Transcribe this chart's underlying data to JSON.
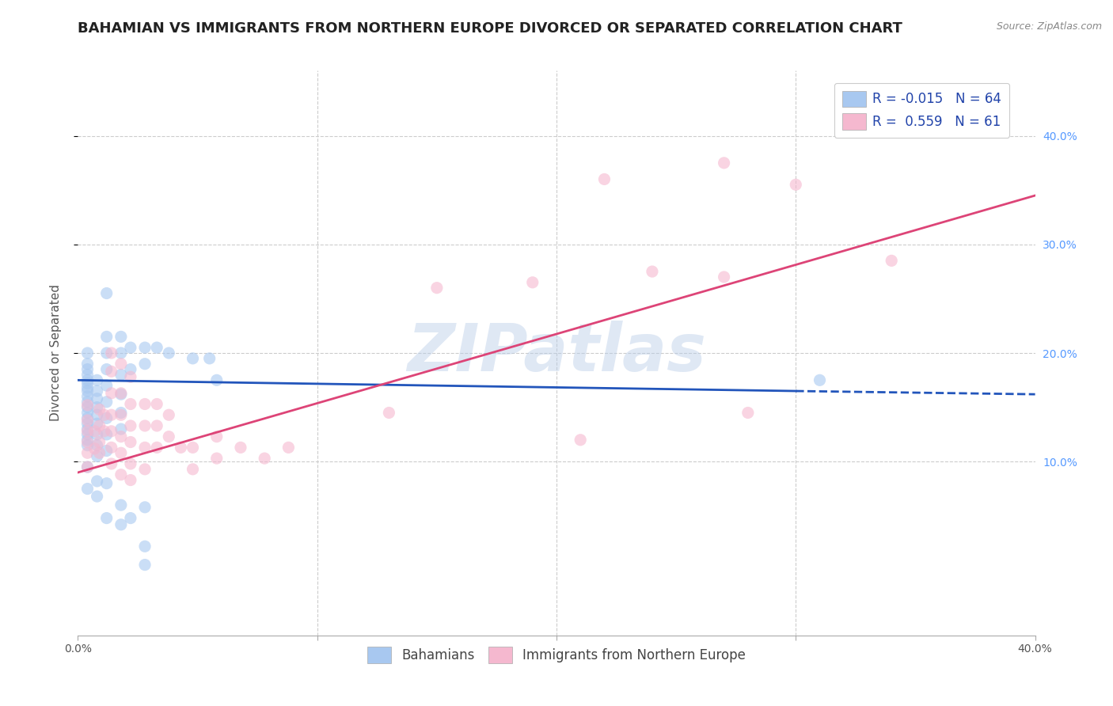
{
  "title": "BAHAMIAN VS IMMIGRANTS FROM NORTHERN EUROPE DIVORCED OR SEPARATED CORRELATION CHART",
  "source": "Source: ZipAtlas.com",
  "ylabel": "Divorced or Separated",
  "xlim": [
    0.0,
    0.4
  ],
  "ylim": [
    -0.06,
    0.46
  ],
  "yticks_right": [
    0.1,
    0.2,
    0.3,
    0.4
  ],
  "ytick_labels_right": [
    "10.0%",
    "20.0%",
    "30.0%",
    "40.0%"
  ],
  "legend_r_blue": "R = -0.015",
  "legend_n_blue": "N = 64",
  "legend_r_pink": "R =  0.559",
  "legend_n_pink": "N = 61",
  "color_blue": "#a8c8f0",
  "color_pink": "#f5b8cf",
  "line_blue": "#2255bb",
  "line_pink": "#dd4477",
  "watermark": "ZIPatlas",
  "blue_scatter": [
    [
      0.004,
      0.2
    ],
    [
      0.004,
      0.19
    ],
    [
      0.004,
      0.185
    ],
    [
      0.004,
      0.18
    ],
    [
      0.004,
      0.175
    ],
    [
      0.004,
      0.172
    ],
    [
      0.004,
      0.168
    ],
    [
      0.004,
      0.165
    ],
    [
      0.004,
      0.16
    ],
    [
      0.004,
      0.155
    ],
    [
      0.004,
      0.15
    ],
    [
      0.004,
      0.145
    ],
    [
      0.004,
      0.14
    ],
    [
      0.004,
      0.135
    ],
    [
      0.004,
      0.13
    ],
    [
      0.004,
      0.125
    ],
    [
      0.004,
      0.12
    ],
    [
      0.004,
      0.115
    ],
    [
      0.004,
      0.095
    ],
    [
      0.008,
      0.175
    ],
    [
      0.008,
      0.165
    ],
    [
      0.008,
      0.158
    ],
    [
      0.008,
      0.15
    ],
    [
      0.008,
      0.143
    ],
    [
      0.008,
      0.135
    ],
    [
      0.008,
      0.125
    ],
    [
      0.008,
      0.115
    ],
    [
      0.008,
      0.105
    ],
    [
      0.012,
      0.255
    ],
    [
      0.012,
      0.215
    ],
    [
      0.012,
      0.2
    ],
    [
      0.012,
      0.185
    ],
    [
      0.012,
      0.17
    ],
    [
      0.012,
      0.155
    ],
    [
      0.012,
      0.14
    ],
    [
      0.012,
      0.125
    ],
    [
      0.012,
      0.11
    ],
    [
      0.012,
      0.08
    ],
    [
      0.018,
      0.215
    ],
    [
      0.018,
      0.2
    ],
    [
      0.018,
      0.18
    ],
    [
      0.018,
      0.162
    ],
    [
      0.018,
      0.145
    ],
    [
      0.018,
      0.13
    ],
    [
      0.022,
      0.205
    ],
    [
      0.022,
      0.185
    ],
    [
      0.028,
      0.205
    ],
    [
      0.028,
      0.19
    ],
    [
      0.033,
      0.205
    ],
    [
      0.038,
      0.2
    ],
    [
      0.048,
      0.195
    ],
    [
      0.055,
      0.195
    ],
    [
      0.058,
      0.175
    ],
    [
      0.008,
      0.068
    ],
    [
      0.012,
      0.048
    ],
    [
      0.018,
      0.06
    ],
    [
      0.018,
      0.042
    ],
    [
      0.022,
      0.048
    ],
    [
      0.028,
      0.022
    ],
    [
      0.028,
      0.058
    ],
    [
      0.004,
      0.075
    ],
    [
      0.008,
      0.082
    ],
    [
      0.028,
      0.005
    ],
    [
      0.31,
      0.175
    ]
  ],
  "pink_scatter": [
    [
      0.004,
      0.095
    ],
    [
      0.004,
      0.108
    ],
    [
      0.004,
      0.118
    ],
    [
      0.004,
      0.128
    ],
    [
      0.004,
      0.138
    ],
    [
      0.004,
      0.152
    ],
    [
      0.007,
      0.128
    ],
    [
      0.007,
      0.112
    ],
    [
      0.009,
      0.148
    ],
    [
      0.009,
      0.133
    ],
    [
      0.009,
      0.118
    ],
    [
      0.009,
      0.108
    ],
    [
      0.011,
      0.143
    ],
    [
      0.011,
      0.128
    ],
    [
      0.014,
      0.2
    ],
    [
      0.014,
      0.183
    ],
    [
      0.014,
      0.163
    ],
    [
      0.014,
      0.143
    ],
    [
      0.014,
      0.128
    ],
    [
      0.014,
      0.113
    ],
    [
      0.014,
      0.098
    ],
    [
      0.018,
      0.19
    ],
    [
      0.018,
      0.163
    ],
    [
      0.018,
      0.143
    ],
    [
      0.018,
      0.123
    ],
    [
      0.018,
      0.108
    ],
    [
      0.018,
      0.088
    ],
    [
      0.022,
      0.178
    ],
    [
      0.022,
      0.153
    ],
    [
      0.022,
      0.133
    ],
    [
      0.022,
      0.118
    ],
    [
      0.022,
      0.098
    ],
    [
      0.022,
      0.083
    ],
    [
      0.028,
      0.153
    ],
    [
      0.028,
      0.133
    ],
    [
      0.028,
      0.113
    ],
    [
      0.028,
      0.093
    ],
    [
      0.033,
      0.153
    ],
    [
      0.033,
      0.133
    ],
    [
      0.033,
      0.113
    ],
    [
      0.038,
      0.143
    ],
    [
      0.038,
      0.123
    ],
    [
      0.043,
      0.113
    ],
    [
      0.048,
      0.113
    ],
    [
      0.048,
      0.093
    ],
    [
      0.058,
      0.123
    ],
    [
      0.058,
      0.103
    ],
    [
      0.068,
      0.113
    ],
    [
      0.078,
      0.103
    ],
    [
      0.088,
      0.113
    ],
    [
      0.3,
      0.355
    ],
    [
      0.34,
      0.285
    ],
    [
      0.24,
      0.275
    ],
    [
      0.19,
      0.265
    ],
    [
      0.27,
      0.375
    ],
    [
      0.22,
      0.36
    ],
    [
      0.27,
      0.27
    ],
    [
      0.28,
      0.145
    ],
    [
      0.21,
      0.12
    ],
    [
      0.13,
      0.145
    ],
    [
      0.15,
      0.26
    ]
  ],
  "blue_line_solid": [
    [
      0.0,
      0.175
    ],
    [
      0.3,
      0.165
    ]
  ],
  "blue_line_dashed": [
    [
      0.3,
      0.165
    ],
    [
      0.4,
      0.162
    ]
  ],
  "pink_line": [
    [
      0.0,
      0.09
    ],
    [
      0.4,
      0.345
    ]
  ],
  "grid_yticks": [
    0.1,
    0.2,
    0.3,
    0.4
  ],
  "grid_xticks": [
    0.1,
    0.2,
    0.3
  ],
  "grid_color": "#cccccc",
  "background_color": "#ffffff",
  "title_fontsize": 13,
  "axis_label_fontsize": 11,
  "tick_fontsize": 10,
  "legend_fontsize": 12,
  "scatter_size": 120,
  "scatter_alpha": 0.6
}
